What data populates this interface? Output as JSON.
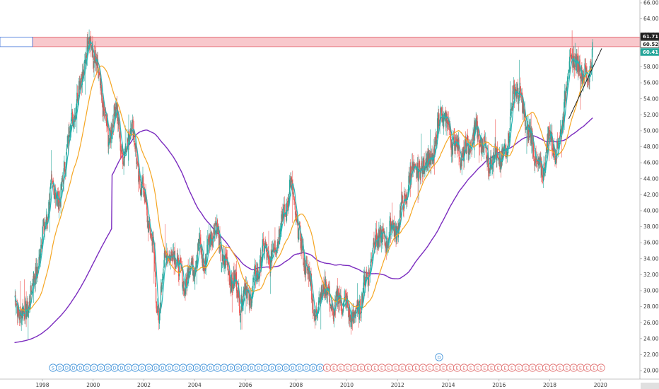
{
  "chart_data": {
    "type": "candlestick",
    "y_axis": {
      "ticks": [
        "66.00",
        "64.00",
        "62.00",
        "60.00",
        "58.00",
        "56.00",
        "54.00",
        "52.00",
        "50.00",
        "48.00",
        "46.00",
        "44.00",
        "42.00",
        "40.00",
        "38.00",
        "36.00",
        "34.00",
        "32.00",
        "30.00",
        "28.00",
        "26.00",
        "24.00",
        "22.00",
        "20.00"
      ],
      "ylim": [
        19.3,
        66.4
      ],
      "position": "right"
    },
    "x_axis": {
      "ticks": [
        "1998",
        "2000",
        "2002",
        "2004",
        "2006",
        "2008",
        "2010",
        "2012",
        "2014",
        "2016",
        "2018",
        "2020"
      ],
      "range": [
        1996.85,
        2021.2
      ]
    },
    "resistance_zone": {
      "low": 60.52,
      "high": 61.71,
      "color": "#f8c8cc"
    },
    "price_labels": [
      {
        "text": "61.71",
        "value": 61.71,
        "bg": "#1e1e1e",
        "fg": "#ffffff"
      },
      {
        "text": "60.52",
        "value": 60.52,
        "bg": "#ffffff",
        "fg": "#1e1e1e"
      },
      {
        "text": "60.41",
        "value": 60.41,
        "bg": "#26a69a",
        "fg": "#ffffff"
      }
    ],
    "trendline": {
      "x": [
        2018.75,
        2020.05
      ],
      "y": [
        51.5,
        60.3
      ],
      "color": "#1e1e1e"
    },
    "colors": {
      "up": "#26a69a",
      "down": "#ef5350",
      "fast_ma": "#26b5b5",
      "mid_ma": "#f5a623",
      "slow_ma": "#7b2cbf"
    },
    "close_path": [
      [
        1996.9,
        28.5
      ],
      [
        1997.1,
        27.6
      ],
      [
        1997.3,
        26.8
      ],
      [
        1997.5,
        29.2
      ],
      [
        1997.7,
        31.5
      ],
      [
        1997.9,
        34.8
      ],
      [
        1998.1,
        38.2
      ],
      [
        1998.3,
        41.8
      ],
      [
        1998.5,
        43.0
      ],
      [
        1998.7,
        40.5
      ],
      [
        1998.9,
        46.8
      ],
      [
        1999.1,
        50.3
      ],
      [
        1999.3,
        53.2
      ],
      [
        1999.5,
        56.0
      ],
      [
        1999.7,
        59.2
      ],
      [
        1999.85,
        61.6
      ],
      [
        2000.0,
        59.8
      ],
      [
        2000.15,
        57.4
      ],
      [
        2000.3,
        55.2
      ],
      [
        2000.45,
        52.1
      ],
      [
        2000.6,
        48.4
      ],
      [
        2000.75,
        51.2
      ],
      [
        2000.9,
        52.7
      ],
      [
        2001.05,
        49.6
      ],
      [
        2001.2,
        46.2
      ],
      [
        2001.35,
        48.5
      ],
      [
        2001.5,
        51.8
      ],
      [
        2001.65,
        47.6
      ],
      [
        2001.8,
        44.2
      ],
      [
        2001.95,
        42.5
      ],
      [
        2002.1,
        40.2
      ],
      [
        2002.25,
        37.6
      ],
      [
        2002.4,
        34.0
      ],
      [
        2002.5,
        28.6
      ],
      [
        2002.6,
        26.4
      ],
      [
        2002.75,
        32.2
      ],
      [
        2002.9,
        35.8
      ],
      [
        2003.05,
        33.4
      ],
      [
        2003.2,
        35.2
      ],
      [
        2003.4,
        32.4
      ],
      [
        2003.6,
        30.6
      ],
      [
        2003.8,
        32.8
      ],
      [
        2004.0,
        33.6
      ],
      [
        2004.2,
        35.4
      ],
      [
        2004.4,
        33.2
      ],
      [
        2004.6,
        36.4
      ],
      [
        2004.8,
        38.6
      ],
      [
        2005.0,
        35.2
      ],
      [
        2005.2,
        33.4
      ],
      [
        2005.4,
        32.0
      ],
      [
        2005.6,
        30.8
      ],
      [
        2005.8,
        28.6
      ],
      [
        2006.0,
        30.2
      ],
      [
        2006.2,
        29.2
      ],
      [
        2006.4,
        31.6
      ],
      [
        2006.6,
        33.8
      ],
      [
        2006.8,
        35.2
      ],
      [
        2007.0,
        33.4
      ],
      [
        2007.2,
        36.2
      ],
      [
        2007.4,
        38.4
      ],
      [
        2007.6,
        40.2
      ],
      [
        2007.75,
        43.2
      ],
      [
        2007.9,
        41.6
      ],
      [
        2008.05,
        38.2
      ],
      [
        2008.2,
        35.4
      ],
      [
        2008.4,
        33.2
      ],
      [
        2008.6,
        30.2
      ],
      [
        2008.75,
        26.8
      ],
      [
        2008.9,
        28.2
      ],
      [
        2009.1,
        31.2
      ],
      [
        2009.3,
        28.8
      ],
      [
        2009.5,
        27.6
      ],
      [
        2009.7,
        29.2
      ],
      [
        2009.9,
        28.4
      ],
      [
        2010.1,
        27.2
      ],
      [
        2010.3,
        26.6
      ],
      [
        2010.5,
        28.2
      ],
      [
        2010.7,
        30.6
      ],
      [
        2010.9,
        33.2
      ],
      [
        2011.1,
        36.2
      ],
      [
        2011.3,
        37.4
      ],
      [
        2011.5,
        35.6
      ],
      [
        2011.7,
        38.2
      ],
      [
        2011.9,
        37.2
      ],
      [
        2012.1,
        39.4
      ],
      [
        2012.3,
        41.6
      ],
      [
        2012.5,
        44.2
      ],
      [
        2012.7,
        45.6
      ],
      [
        2012.9,
        44.2
      ],
      [
        2013.1,
        47.2
      ],
      [
        2013.3,
        45.4
      ],
      [
        2013.5,
        48.6
      ],
      [
        2013.7,
        52.2
      ],
      [
        2013.9,
        51.4
      ],
      [
        2014.1,
        49.2
      ],
      [
        2014.3,
        48.4
      ],
      [
        2014.5,
        46.8
      ],
      [
        2014.7,
        47.4
      ],
      [
        2014.9,
        48.6
      ],
      [
        2015.1,
        50.2
      ],
      [
        2015.3,
        48.6
      ],
      [
        2015.5,
        47.2
      ],
      [
        2015.7,
        46.0
      ],
      [
        2015.9,
        47.4
      ],
      [
        2016.1,
        45.6
      ],
      [
        2016.3,
        48.4
      ],
      [
        2016.5,
        52.2
      ],
      [
        2016.65,
        56.0
      ],
      [
        2016.8,
        54.2
      ],
      [
        2016.95,
        52.4
      ],
      [
        2017.1,
        50.6
      ],
      [
        2017.25,
        49.0
      ],
      [
        2017.4,
        47.6
      ],
      [
        2017.55,
        45.2
      ],
      [
        2017.7,
        44.6
      ],
      [
        2017.85,
        47.4
      ],
      [
        2018.0,
        49.6
      ],
      [
        2018.15,
        48.2
      ],
      [
        2018.3,
        47.0
      ],
      [
        2018.45,
        50.4
      ],
      [
        2018.6,
        54.2
      ],
      [
        2018.75,
        57.6
      ],
      [
        2018.9,
        59.8
      ],
      [
        2019.05,
        57.6
      ],
      [
        2019.2,
        58.4
      ],
      [
        2019.35,
        57.0
      ],
      [
        2019.5,
        56.2
      ],
      [
        2019.6,
        58.6
      ],
      [
        2019.7,
        60.4
      ]
    ],
    "annotations": {
      "markers": [
        "S",
        "D",
        "E"
      ],
      "timeline_letters": [
        "S",
        "D",
        "D",
        "D",
        "D",
        "D",
        "D",
        "D",
        "D",
        "D",
        "D",
        "D",
        "D",
        "D",
        "D",
        "D",
        "D",
        "D",
        "D",
        "D",
        "D",
        "D",
        "D",
        "D",
        "D",
        "D",
        "D",
        "D",
        "D",
        "D",
        "D",
        "D",
        "D",
        "D",
        "D",
        "D",
        "D",
        "D",
        "D",
        "D",
        "E",
        "E",
        "E",
        "E",
        "E",
        "E",
        "E",
        "E",
        "E",
        "E",
        "E",
        "E",
        "E",
        "E",
        "E",
        "E",
        "E",
        "E",
        "E",
        "E",
        "E",
        "E",
        "E",
        "E",
        "E",
        "E",
        "E",
        "E",
        "E",
        "E",
        "E",
        "E",
        "E",
        "E",
        "E",
        "E",
        "E",
        "E",
        "E",
        "E",
        "E"
      ],
      "raised_marker": {
        "letter": "D",
        "x": 2013.5
      }
    }
  }
}
